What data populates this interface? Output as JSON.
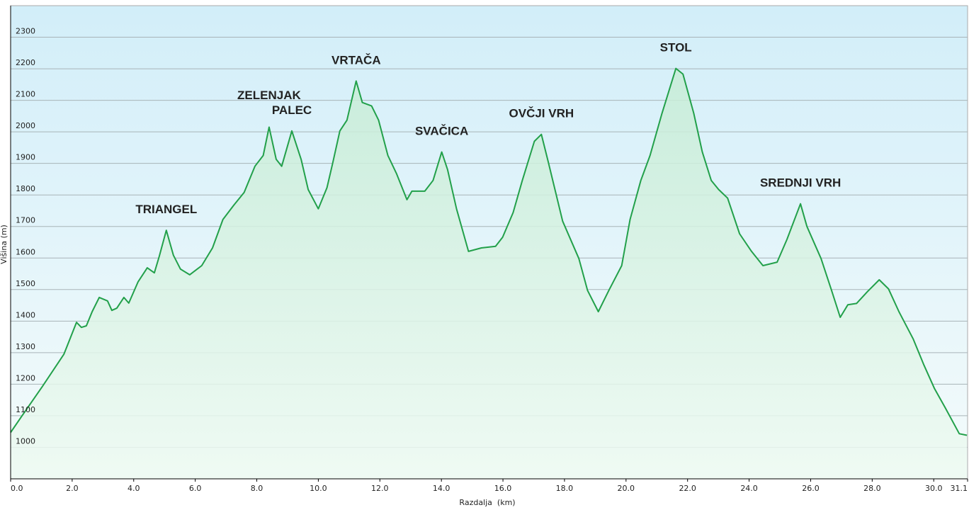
{
  "chart_data": {
    "type": "area",
    "xlabel": "Razdalja  (km)",
    "ylabel": "Višina (m)",
    "x": [
      0,
      0.35,
      1.04,
      1.73,
      2.14,
      2.3,
      2.46,
      2.65,
      2.88,
      3.15,
      3.29,
      3.45,
      3.68,
      3.84,
      4.14,
      4.44,
      4.67,
      4.83,
      5.06,
      5.29,
      5.52,
      5.82,
      6.21,
      6.56,
      6.9,
      7.25,
      7.59,
      7.94,
      8.21,
      8.4,
      8.63,
      8.81,
      9.14,
      9.44,
      9.67,
      10.0,
      10.28,
      10.47,
      10.7,
      10.93,
      11.23,
      11.43,
      11.73,
      11.96,
      12.26,
      12.54,
      12.88,
      13.04,
      13.46,
      13.73,
      14.01,
      14.2,
      14.49,
      14.88,
      15.3,
      15.76,
      15.99,
      16.33,
      16.63,
      17.02,
      17.25,
      17.48,
      17.94,
      18.47,
      18.75,
      19.1,
      19.44,
      19.86,
      20.13,
      20.48,
      20.78,
      21.17,
      21.62,
      21.85,
      22.2,
      22.48,
      22.77,
      23.01,
      23.3,
      23.69,
      24.08,
      24.45,
      24.91,
      25.23,
      25.67,
      25.88,
      26.34,
      26.68,
      26.96,
      27.21,
      27.49,
      27.84,
      28.23,
      28.53,
      28.87,
      29.33,
      29.68,
      30.02,
      30.37,
      30.83,
      31.08
    ],
    "series": [
      {
        "color": "#22a04a",
        "values": [
          1047,
          1097,
          1194,
          1295,
          1396,
          1380,
          1385,
          1430,
          1475,
          1464,
          1434,
          1441,
          1475,
          1457,
          1524,
          1569,
          1553,
          1605,
          1688,
          1609,
          1565,
          1547,
          1576,
          1632,
          1722,
          1767,
          1808,
          1891,
          1925,
          2015,
          1913,
          1891,
          2003,
          1913,
          1817,
          1756,
          1823,
          1902,
          2003,
          2037,
          2161,
          2093,
          2082,
          2037,
          1925,
          1868,
          1785,
          1812,
          1812,
          1846,
          1936,
          1880,
          1756,
          1621,
          1632,
          1637,
          1666,
          1744,
          1846,
          1970,
          1992,
          1902,
          1717,
          1598,
          1497,
          1430,
          1497,
          1576,
          1722,
          1846,
          1925,
          2059,
          2201,
          2183,
          2059,
          1936,
          1846,
          1817,
          1790,
          1677,
          1621,
          1576,
          1587,
          1659,
          1772,
          1700,
          1598,
          1497,
          1412,
          1452,
          1456,
          1493,
          1531,
          1502,
          1430,
          1344,
          1261,
          1187,
          1126,
          1043,
          1038
        ]
      }
    ],
    "annotations": [
      {
        "text": "TRIANGEL",
        "x": 5.06,
        "y": 1688
      },
      {
        "text": "ZELENJAK",
        "x": 8.4,
        "y": 2015
      },
      {
        "text": "PALEC",
        "x": 9.14,
        "y": 2003
      },
      {
        "text": "VRTAČA",
        "x": 11.23,
        "y": 2161
      },
      {
        "text": "SVAČICA",
        "x": 14.01,
        "y": 1936
      },
      {
        "text": "OVČJI VRH",
        "x": 17.25,
        "y": 1992
      },
      {
        "text": "STOL",
        "x": 21.62,
        "y": 2201
      },
      {
        "text": "SREDNJI VRH",
        "x": 25.67,
        "y": 1772
      }
    ],
    "annotation_color": "#e0202c",
    "xlim": [
      0,
      31.1
    ],
    "ylim": [
      900,
      2400
    ],
    "xticks": [
      {
        "value": 0,
        "label": "0.0"
      },
      {
        "value": 2,
        "label": "2.0"
      },
      {
        "value": 4,
        "label": "4.0"
      },
      {
        "value": 6,
        "label": "6.0"
      },
      {
        "value": 8,
        "label": "8.0"
      },
      {
        "value": 10,
        "label": "10.0"
      },
      {
        "value": 12,
        "label": "12.0"
      },
      {
        "value": 14,
        "label": "14.0"
      },
      {
        "value": 16,
        "label": "16.0"
      },
      {
        "value": 18,
        "label": "18.0"
      },
      {
        "value": 20,
        "label": "20.0"
      },
      {
        "value": 22,
        "label": "22.0"
      },
      {
        "value": 24,
        "label": "24.0"
      },
      {
        "value": 26,
        "label": "26.0"
      },
      {
        "value": 28,
        "label": "28.0"
      },
      {
        "value": 30,
        "label": "30.0"
      },
      31.1
    ],
    "yticks": [
      1000,
      1100,
      1200,
      1300,
      1400,
      1500,
      1600,
      1700,
      1800,
      1900,
      2000,
      2100,
      2200,
      2300
    ],
    "grid": true
  }
}
